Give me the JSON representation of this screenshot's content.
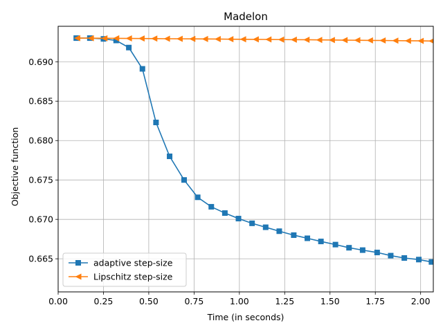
{
  "chart_data": {
    "type": "line",
    "title": "Madelon",
    "xlabel": "Time (in seconds)",
    "ylabel": "Objective function",
    "xlim": [
      0.0,
      2.07
    ],
    "ylim": [
      0.6608,
      0.6945
    ],
    "xticks": [
      0.0,
      0.25,
      0.5,
      0.75,
      1.0,
      1.25,
      1.5,
      1.75,
      2.0
    ],
    "xtick_labels": [
      "0.00",
      "0.25",
      "0.50",
      "0.75",
      "1.00",
      "1.25",
      "1.50",
      "1.75",
      "2.00"
    ],
    "yticks": [
      0.665,
      0.67,
      0.675,
      0.68,
      0.685,
      0.69
    ],
    "ytick_labels": [
      "0.665",
      "0.670",
      "0.675",
      "0.680",
      "0.685",
      "0.690"
    ],
    "grid": true,
    "legend_position": "lower-left",
    "series": [
      {
        "name": "adaptive step-size",
        "color": "#1f77b4",
        "marker": "square",
        "x": [
          0.1,
          0.175,
          0.25,
          0.32,
          0.39,
          0.465,
          0.54,
          0.615,
          0.695,
          0.77,
          0.845,
          0.92,
          0.995,
          1.07,
          1.145,
          1.22,
          1.3,
          1.375,
          1.45,
          1.53,
          1.605,
          1.68,
          1.76,
          1.835,
          1.91,
          1.99,
          2.06
        ],
        "y": [
          0.693,
          0.693,
          0.6929,
          0.6927,
          0.6918,
          0.6891,
          0.6823,
          0.678,
          0.675,
          0.6728,
          0.6716,
          0.6708,
          0.6701,
          0.6695,
          0.669,
          0.6685,
          0.668,
          0.6676,
          0.6672,
          0.6668,
          0.6664,
          0.6661,
          0.6658,
          0.6654,
          0.6651,
          0.6649,
          0.6646
        ]
      },
      {
        "name": "Lipschitz step-size",
        "color": "#ff7f0e",
        "marker": "triangle-left",
        "x": [
          0.105,
          0.18,
          0.255,
          0.32,
          0.39,
          0.46,
          0.53,
          0.6,
          0.67,
          0.74,
          0.81,
          0.88,
          0.95,
          1.02,
          1.09,
          1.16,
          1.23,
          1.3,
          1.37,
          1.44,
          1.51,
          1.58,
          1.65,
          1.72,
          1.79,
          1.86,
          1.93,
          2.0,
          2.06
        ],
        "y": [
          0.693,
          0.69299,
          0.69298,
          0.69297,
          0.69296,
          0.69295,
          0.69294,
          0.69292,
          0.69291,
          0.6929,
          0.69289,
          0.69288,
          0.69286,
          0.69285,
          0.69284,
          0.69283,
          0.69281,
          0.6928,
          0.69279,
          0.69277,
          0.69276,
          0.69274,
          0.69273,
          0.69271,
          0.6927,
          0.69268,
          0.69266,
          0.69265,
          0.69263
        ]
      }
    ]
  }
}
